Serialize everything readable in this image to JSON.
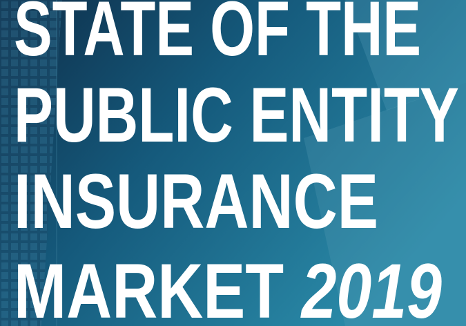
{
  "title": {
    "lines": [
      "STATE OF THE",
      "PUBLIC ENTITY",
      "INSURANCE"
    ],
    "last": "MARKET",
    "year": "2019"
  }
}
